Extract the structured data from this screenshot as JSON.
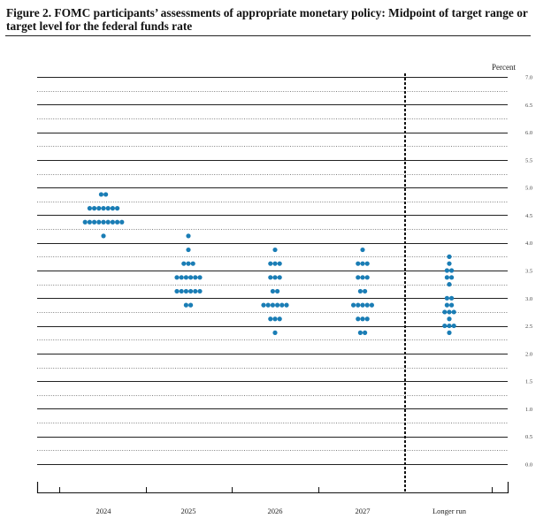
{
  "figure": {
    "title": "Figure 2.  FOMC participants’ assessments of appropriate monetary policy: Midpoint of target range or target level for the federal funds rate"
  },
  "chart_data": {
    "type": "scatter",
    "title": "Figure 2.  FOMC participants’ assessments of appropriate monetary policy: Midpoint of target range or target level for the federal funds rate",
    "xlabel": "",
    "ylabel": "Percent",
    "ylim": [
      0,
      7.0
    ],
    "y_ticks": [
      "7.0",
      "6.5",
      "6.0",
      "5.5",
      "5.0",
      "4.5",
      "4.0",
      "3.5",
      "3.0",
      "2.5",
      "2.0",
      "1.5",
      "1.0",
      "0.5",
      "0.0"
    ],
    "categories": [
      "2024",
      "2025",
      "2026",
      "2027",
      "Longer run"
    ],
    "grid": true,
    "dot_color": "#1a7db5",
    "dots": [
      {
        "x": "2024",
        "y": 4.875,
        "count": 2
      },
      {
        "x": "2024",
        "y": 4.625,
        "count": 7
      },
      {
        "x": "2024",
        "y": 4.375,
        "count": 9
      },
      {
        "x": "2024",
        "y": 4.125,
        "count": 1
      },
      {
        "x": "2025",
        "y": 4.125,
        "count": 1
      },
      {
        "x": "2025",
        "y": 3.875,
        "count": 1
      },
      {
        "x": "2025",
        "y": 3.625,
        "count": 3
      },
      {
        "x": "2025",
        "y": 3.375,
        "count": 6
      },
      {
        "x": "2025",
        "y": 3.125,
        "count": 6
      },
      {
        "x": "2025",
        "y": 2.875,
        "count": 2
      },
      {
        "x": "2026",
        "y": 3.875,
        "count": 1
      },
      {
        "x": "2026",
        "y": 3.625,
        "count": 3
      },
      {
        "x": "2026",
        "y": 3.375,
        "count": 3
      },
      {
        "x": "2026",
        "y": 3.125,
        "count": 2
      },
      {
        "x": "2026",
        "y": 2.875,
        "count": 6
      },
      {
        "x": "2026",
        "y": 2.625,
        "count": 3
      },
      {
        "x": "2026",
        "y": 2.375,
        "count": 1
      },
      {
        "x": "2027",
        "y": 3.875,
        "count": 1
      },
      {
        "x": "2027",
        "y": 3.625,
        "count": 3
      },
      {
        "x": "2027",
        "y": 3.375,
        "count": 3
      },
      {
        "x": "2027",
        "y": 3.125,
        "count": 2
      },
      {
        "x": "2027",
        "y": 2.875,
        "count": 5
      },
      {
        "x": "2027",
        "y": 2.625,
        "count": 3
      },
      {
        "x": "2027",
        "y": 2.375,
        "count": 2
      },
      {
        "x": "Longer run",
        "y": 3.75,
        "count": 1
      },
      {
        "x": "Longer run",
        "y": 3.625,
        "count": 1
      },
      {
        "x": "Longer run",
        "y": 3.5,
        "count": 2
      },
      {
        "x": "Longer run",
        "y": 3.375,
        "count": 2
      },
      {
        "x": "Longer run",
        "y": 3.25,
        "count": 1
      },
      {
        "x": "Longer run",
        "y": 3.0,
        "count": 2
      },
      {
        "x": "Longer run",
        "y": 2.875,
        "count": 2
      },
      {
        "x": "Longer run",
        "y": 2.75,
        "count": 3
      },
      {
        "x": "Longer run",
        "y": 2.625,
        "count": 1
      },
      {
        "x": "Longer run",
        "y": 2.5,
        "count": 3
      },
      {
        "x": "Longer run",
        "y": 2.375,
        "count": 1
      }
    ]
  }
}
